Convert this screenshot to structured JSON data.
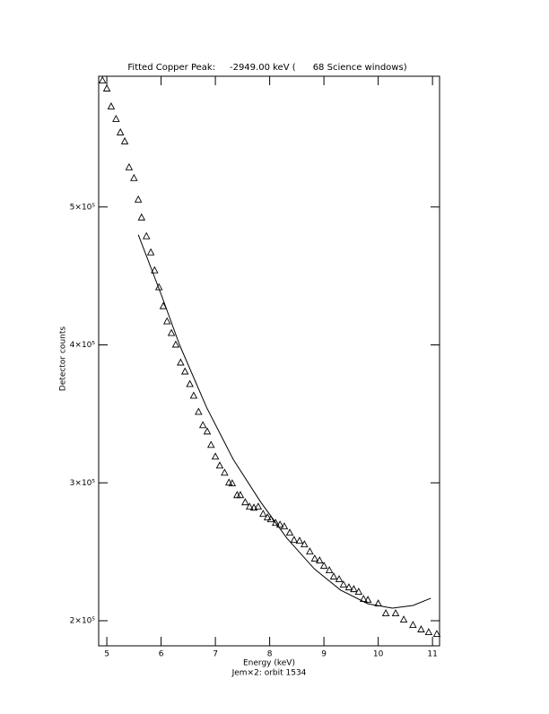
{
  "chart_data": {
    "type": "scatter",
    "title": "Fitted Copper Peak:     -2949.00 keV (      68 Science windows)",
    "x_label": "Energy (keV)",
    "subtitle": "Jem×2: orbit 1534",
    "y_label": "Detector counts",
    "xlim": [
      4.85,
      11.13
    ],
    "ylim": [
      181800,
      594800
    ],
    "xticks": [
      5,
      6,
      7,
      8,
      9,
      10,
      11
    ],
    "yticks": [
      {
        "value": 200000,
        "label": "2×10⁵"
      },
      {
        "value": 300000,
        "label": "3×10⁵"
      },
      {
        "value": 400000,
        "label": "4×10⁵"
      },
      {
        "value": 500000,
        "label": "5×10⁵"
      }
    ],
    "color": "#000000",
    "series": [
      {
        "type": "scatter",
        "marker": "triangle",
        "x": [
          4.92,
          5.0,
          5.08,
          5.17,
          5.25,
          5.33,
          5.41,
          5.5,
          5.58,
          5.64,
          5.73,
          5.81,
          5.88,
          5.96,
          6.04,
          6.11,
          6.19,
          6.27,
          6.36,
          6.44,
          6.53,
          6.6,
          6.69,
          6.77,
          6.85,
          6.92,
          7.0,
          7.08,
          7.17,
          7.25,
          7.31,
          7.4,
          7.46,
          7.55,
          7.63,
          7.71,
          7.79,
          7.88,
          7.96,
          8.02,
          8.11,
          8.19,
          8.27,
          8.37,
          8.45,
          8.55,
          8.64,
          8.74,
          8.83,
          8.92,
          9.0,
          9.1,
          9.18,
          9.28,
          9.36,
          9.46,
          9.55,
          9.64,
          9.73,
          9.81,
          10.0,
          10.14,
          10.32,
          10.47,
          10.64,
          10.79,
          10.93,
          11.08
        ],
        "values": [
          591600,
          585700,
          572700,
          563600,
          553900,
          547400,
          528600,
          520800,
          505200,
          492200,
          478600,
          466900,
          453900,
          441600,
          427900,
          416900,
          408400,
          400000,
          387000,
          380500,
          371400,
          363000,
          351300,
          341600,
          337000,
          327300,
          318800,
          312300,
          307100,
          300000,
          299400,
          290900,
          290900,
          285700,
          282500,
          281800,
          282500,
          277300,
          274700,
          273400,
          270800,
          269500,
          268200,
          263600,
          258400,
          257800,
          255200,
          250000,
          244800,
          243500,
          239600,
          236400,
          231800,
          229900,
          226000,
          224000,
          222700,
          220800,
          215600,
          214900,
          212300,
          205200,
          205200,
          200600,
          196700,
          193500,
          191500,
          190200
        ]
      },
      {
        "type": "line",
        "x": [
          5.58,
          6.01,
          6.34,
          6.84,
          7.33,
          7.83,
          8.32,
          8.82,
          9.31,
          9.81,
          10.26,
          10.64,
          10.97
        ],
        "values": [
          479900,
          435700,
          400000,
          354500,
          316900,
          286300,
          259700,
          237700,
          222100,
          212300,
          209100,
          211100,
          216300
        ]
      }
    ]
  }
}
